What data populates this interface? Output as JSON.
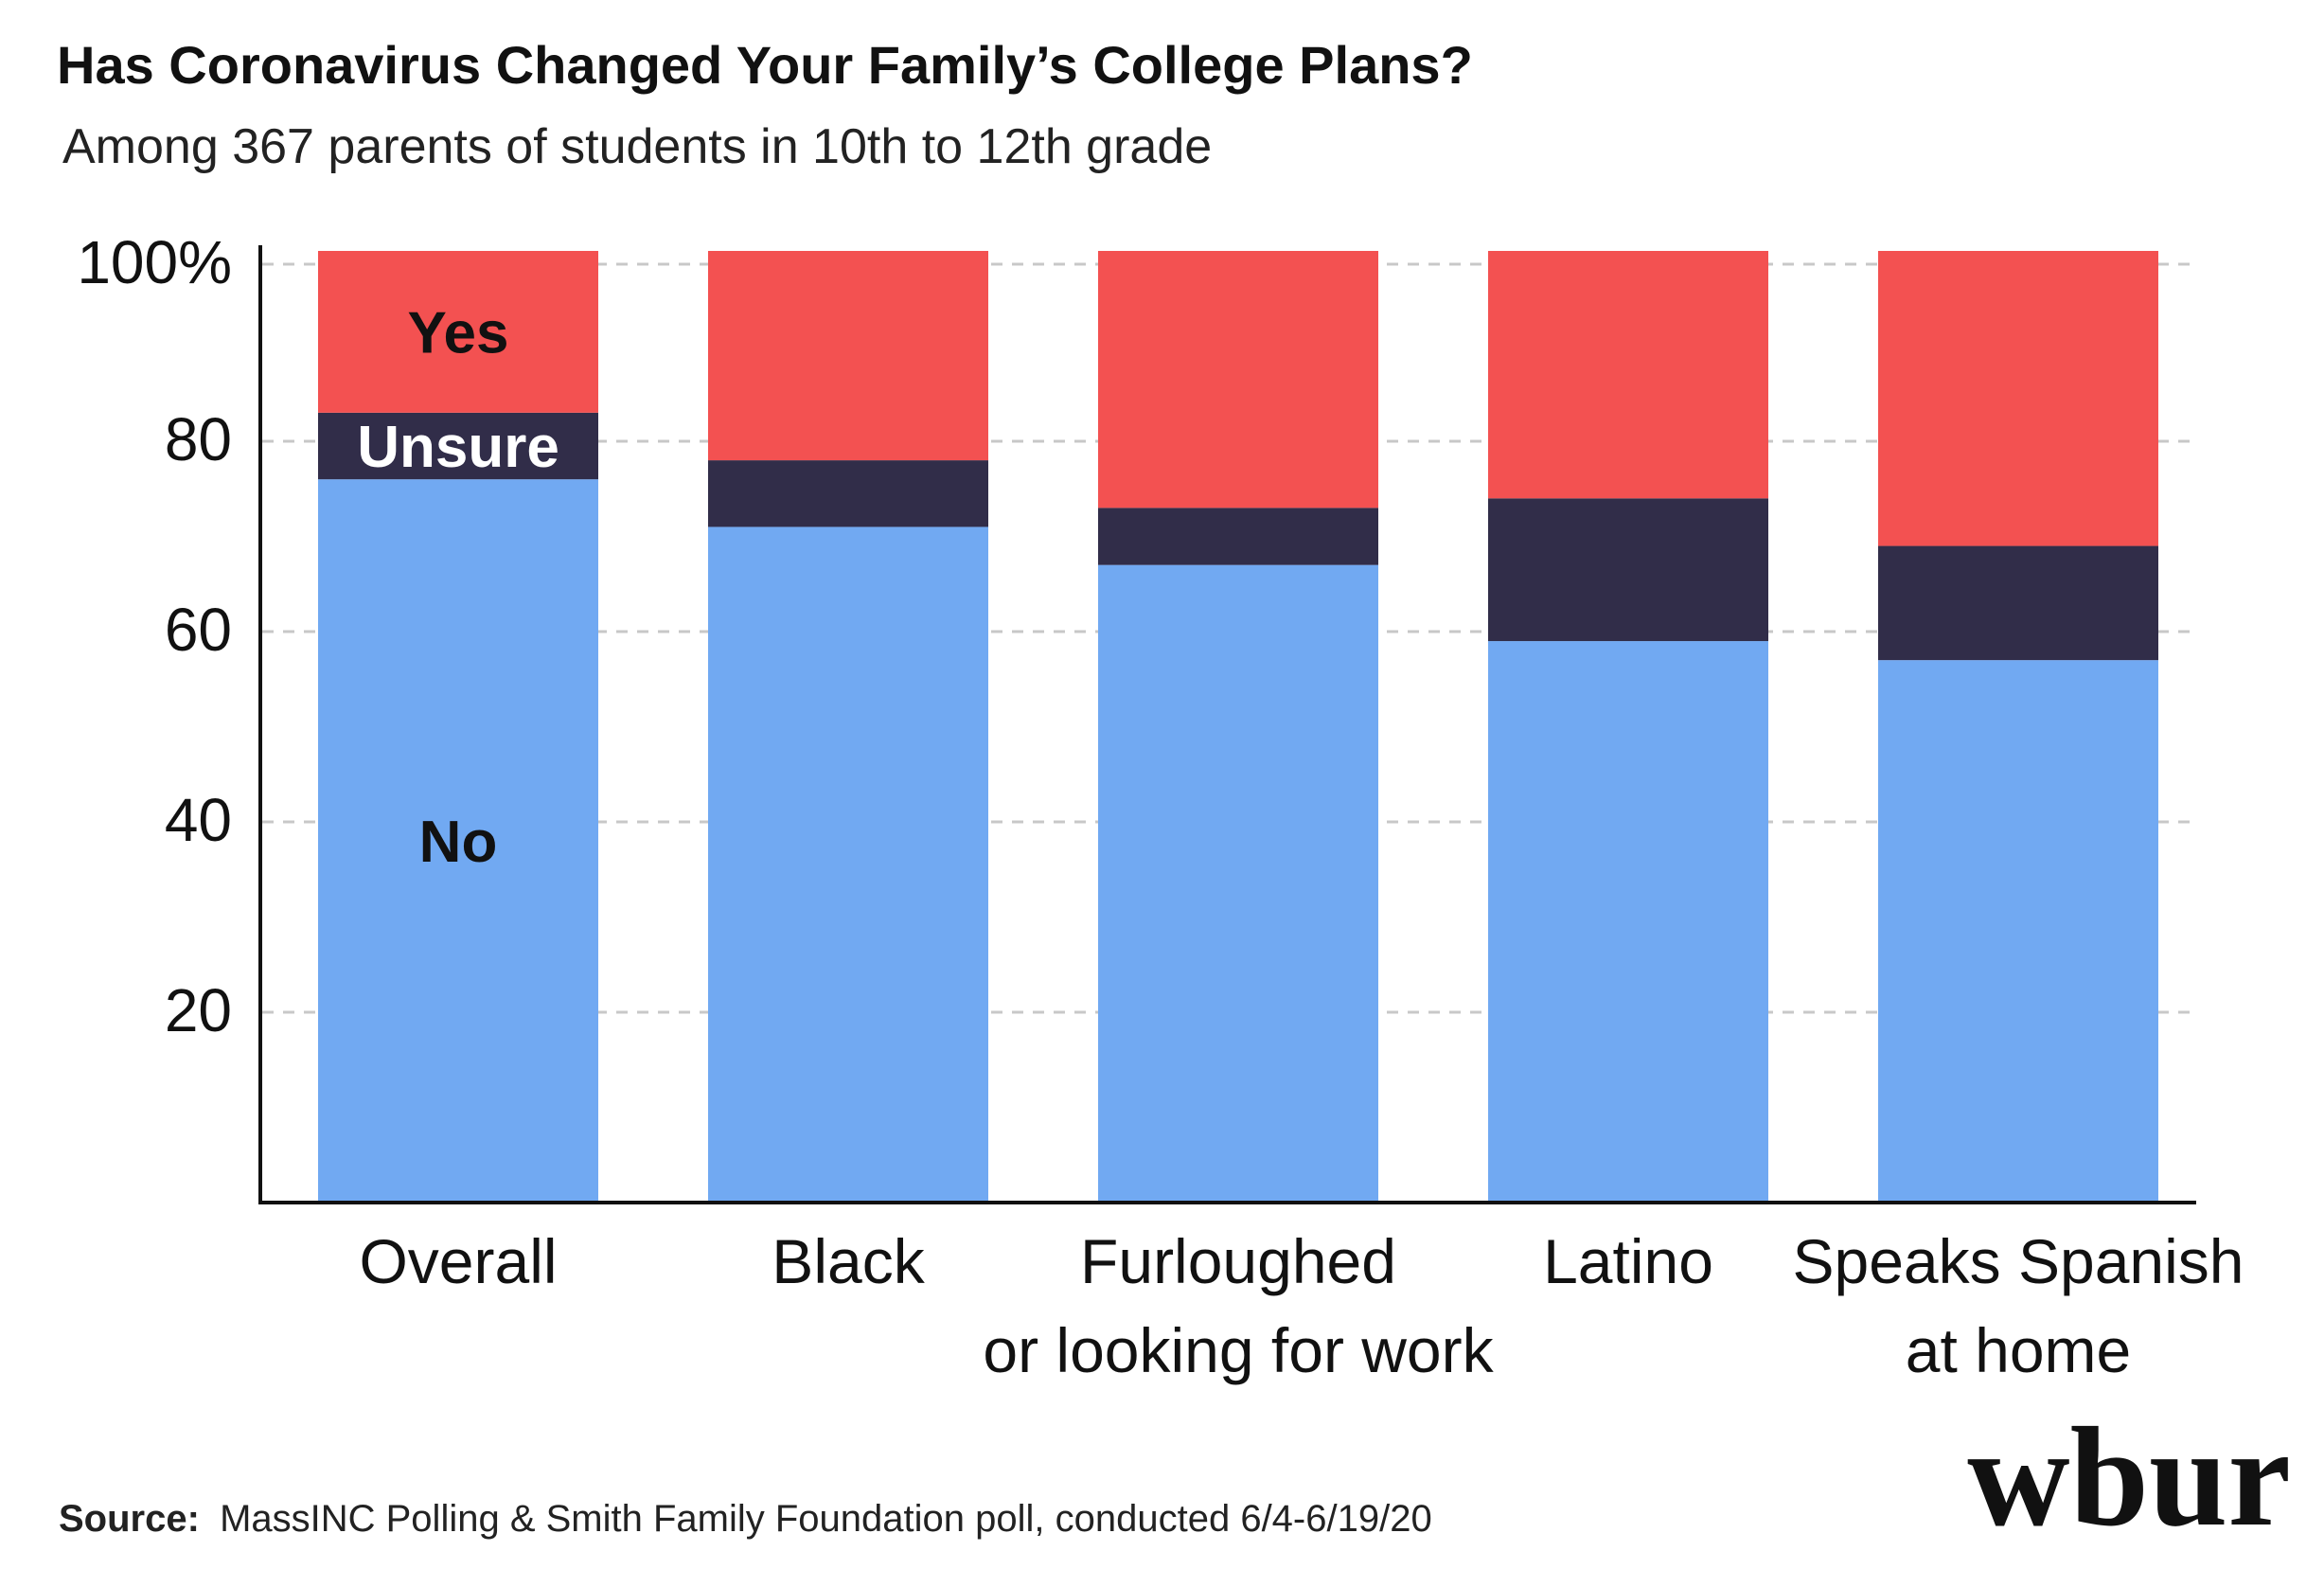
{
  "chart_data": {
    "type": "bar",
    "stacked": true,
    "title": "Has Coronavirus Changed Your Family’s College Plans?",
    "subtitle": "Among 367 parents of students in 10th to 12th grade",
    "categories": [
      [
        "Overall"
      ],
      [
        "Black"
      ],
      [
        "Furloughed",
        "or looking for work"
      ],
      [
        "Latino"
      ],
      [
        "Speaks Spanish",
        "at home"
      ]
    ],
    "series": [
      {
        "name": "No",
        "color": "#71a9f2",
        "values": [
          76,
          71,
          67,
          59,
          57
        ]
      },
      {
        "name": "Unsure",
        "color": "#312d49",
        "values": [
          7,
          7,
          6,
          15,
          12
        ]
      },
      {
        "name": "Yes",
        "color": "#f35151",
        "values": [
          17,
          22,
          27,
          26,
          31
        ]
      }
    ],
    "series_label_category_index": 0,
    "y_ticks": [
      {
        "value": 20,
        "label": "20"
      },
      {
        "value": 40,
        "label": "40"
      },
      {
        "value": 60,
        "label": "60"
      },
      {
        "value": 80,
        "label": "80"
      },
      {
        "value": 100,
        "label": "100%"
      }
    ],
    "ylim": [
      0,
      100
    ],
    "grid": "dashed",
    "xlabel": "",
    "ylabel": ""
  },
  "source": {
    "label": "Source:",
    "text": "MassINC Polling & Smith Family Foundation poll, conducted 6/4-6/19/20"
  },
  "logo": {
    "text": "wbur"
  },
  "colors": {
    "grid": "#c8c8c8",
    "axis": "#111111",
    "text": "#111111",
    "label_light": "#ffffff"
  }
}
